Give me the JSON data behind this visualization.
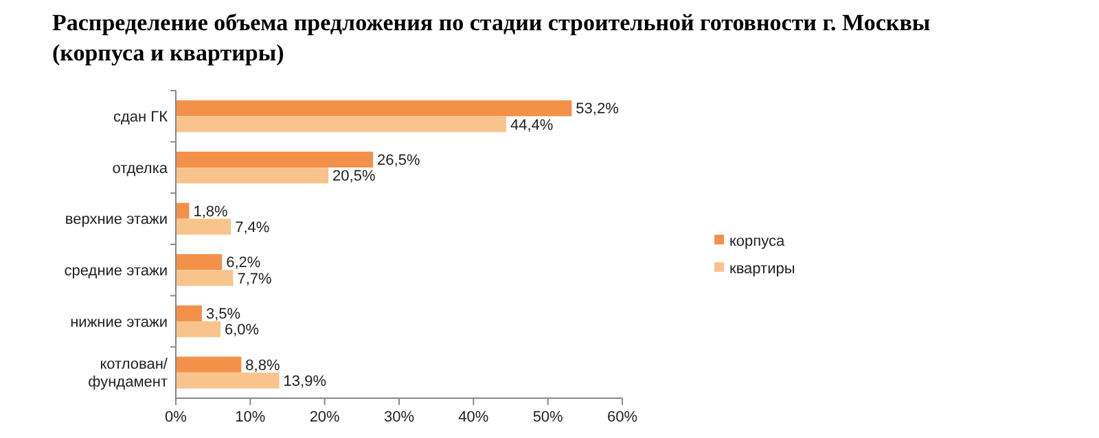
{
  "chart_data": {
    "type": "bar",
    "orientation": "horizontal",
    "title": "Распределение объема предложения по стадии строительной готовности г. Москвы (корпуса и квартиры)",
    "categories": [
      "сдан ГК",
      "отделка",
      "верхние этажи",
      "средние этажи",
      "нижние этажи",
      "котлован/ фундамент"
    ],
    "series": [
      {
        "name": "корпуса",
        "color": "#f39149",
        "values": [
          53.2,
          26.5,
          1.8,
          6.2,
          3.5,
          8.8
        ],
        "value_labels": [
          "53,2%",
          "26,5%",
          "1,8%",
          "6,2%",
          "3,5%",
          "8,8%"
        ]
      },
      {
        "name": "квартиры",
        "color": "#f9c48c",
        "values": [
          44.4,
          20.5,
          7.4,
          7.7,
          6.0,
          13.9
        ],
        "value_labels": [
          "44,4%",
          "20,5%",
          "7,4%",
          "7,7%",
          "6,0%",
          "13,9%"
        ]
      }
    ],
    "xlim": [
      0,
      60
    ],
    "xticks": [
      {
        "value": 0,
        "label": "0%"
      },
      {
        "value": 10,
        "label": "10%"
      },
      {
        "value": 20,
        "label": "20%"
      },
      {
        "value": 30,
        "label": "30%"
      },
      {
        "value": 40,
        "label": "40%"
      },
      {
        "value": 50,
        "label": "50%"
      },
      {
        "value": 60,
        "label": "60%"
      }
    ],
    "grid": false,
    "legend": "right"
  }
}
